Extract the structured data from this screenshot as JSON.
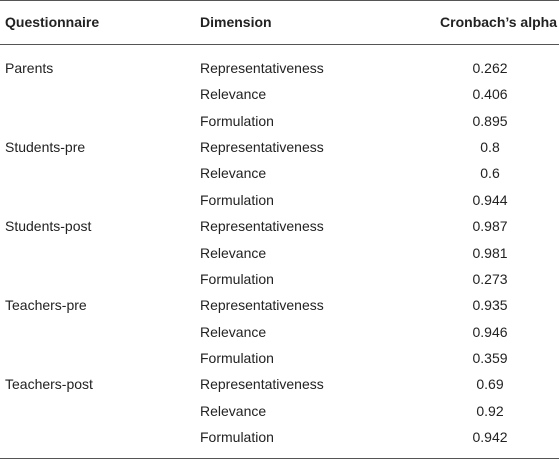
{
  "table": {
    "headers": [
      "Questionnaire",
      "Dimension",
      "Cronbach’s alpha"
    ],
    "groups": [
      {
        "questionnaire": "Parents",
        "rows": [
          {
            "dimension": "Representativeness",
            "alpha": 0.262
          },
          {
            "dimension": "Relevance",
            "alpha": 0.406
          },
          {
            "dimension": "Formulation",
            "alpha": 0.895
          }
        ]
      },
      {
        "questionnaire": "Students-pre",
        "rows": [
          {
            "dimension": "Representativeness",
            "alpha": 0.8
          },
          {
            "dimension": "Relevance",
            "alpha": 0.6
          },
          {
            "dimension": "Formulation",
            "alpha": 0.944
          }
        ]
      },
      {
        "questionnaire": "Students-post",
        "rows": [
          {
            "dimension": "Representativeness",
            "alpha": 0.987
          },
          {
            "dimension": "Relevance",
            "alpha": 0.981
          },
          {
            "dimension": "Formulation",
            "alpha": 0.273
          }
        ]
      },
      {
        "questionnaire": "Teachers-pre",
        "rows": [
          {
            "dimension": "Representativeness",
            "alpha": 0.935
          },
          {
            "dimension": "Relevance",
            "alpha": 0.946
          },
          {
            "dimension": "Formulation",
            "alpha": 0.359
          }
        ]
      },
      {
        "questionnaire": "Teachers-post",
        "rows": [
          {
            "dimension": "Representativeness",
            "alpha": 0.69
          },
          {
            "dimension": "Relevance",
            "alpha": 0.92
          },
          {
            "dimension": "Formulation",
            "alpha": 0.942
          }
        ]
      }
    ]
  }
}
